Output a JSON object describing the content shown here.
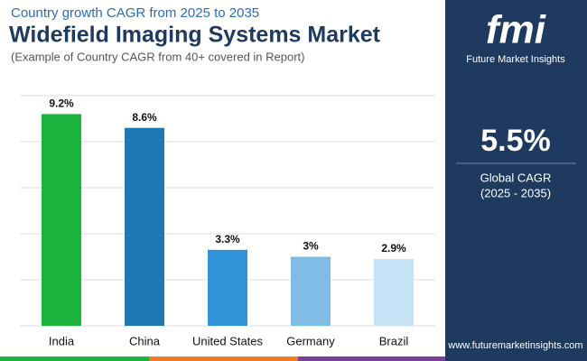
{
  "chart_data": {
    "type": "bar",
    "title": "Widefield Imaging Systems Market",
    "subtitle": "Country growth CAGR from 2025 to 2035",
    "note": "(Example of Country CAGR from 40+ covered in Report)",
    "categories": [
      "India",
      "China",
      "United States",
      "Germany",
      "Brazil"
    ],
    "values": [
      9.2,
      8.6,
      3.3,
      3,
      2.9
    ],
    "value_labels": [
      "9.2%",
      "8.6%",
      "3.3%",
      "3%",
      "2.9%"
    ],
    "colors": [
      "#1db33f",
      "#1f78b4",
      "#2f93d8",
      "#7fbde6",
      "#c6e2f6"
    ],
    "ylim": [
      0,
      10
    ],
    "yticks": [
      0,
      2,
      4,
      6,
      8,
      10
    ],
    "grid": true
  },
  "panel": {
    "value": "5.5%",
    "label": "Global CAGR",
    "period": "(2025 - 2035)"
  },
  "brand": {
    "logo": "fmi",
    "name": "Future Market Insights",
    "url": "www.futuremarketinsights.com"
  }
}
